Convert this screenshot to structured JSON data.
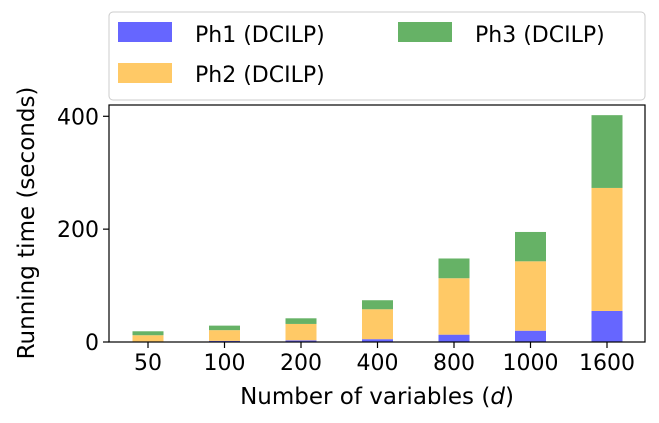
{
  "chart_data": {
    "type": "bar",
    "stacked": true,
    "categories": [
      "50",
      "100",
      "200",
      "400",
      "800",
      "1000",
      "1600"
    ],
    "series": [
      {
        "name": "Ph1 (DCILP)",
        "color": "#6666ff",
        "values": [
          1,
          2,
          3,
          5,
          13,
          20,
          55
        ]
      },
      {
        "name": "Ph2 (DCILP)",
        "color": "#ffc966",
        "values": [
          11,
          19,
          29,
          53,
          100,
          123,
          218
        ]
      },
      {
        "name": "Ph3 (DCILP)",
        "color": "#66b266",
        "values": [
          7,
          8,
          10,
          16,
          35,
          52,
          129
        ]
      }
    ],
    "xlabel_prefix": "Number of variables (",
    "xlabel_var": "d",
    "xlabel_suffix": ")",
    "ylabel": "Running time (seconds)",
    "yticks": [
      0,
      200,
      400
    ],
    "ylim": [
      0,
      420
    ],
    "legend_position": "top",
    "grid": false
  }
}
